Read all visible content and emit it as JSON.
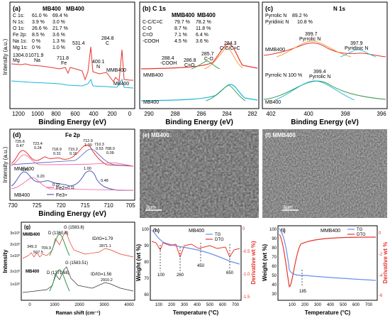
{
  "panel_a": {
    "letter": "(a)",
    "col1": "MB400",
    "col2": "MB400",
    "rows": [
      {
        "el": "C 1s:",
        "v1": "61.0 %",
        "v2": "69.4 %"
      },
      {
        "el": "N 1s:",
        "v1": "3.9 %",
        "v2": "3.0 %"
      },
      {
        "el": "O 1s:",
        "v1": "26.6 %",
        "v2": "21.7 %"
      },
      {
        "el": "Fe 2p:",
        "v1": "8.5 %",
        "v2": "3.6 %"
      },
      {
        "el": "Na 1s:",
        "v1": "0 %",
        "v2": "1.3 %"
      },
      {
        "el": "Mg 1s:",
        "v1": "0 %",
        "v2": "1.0 %"
      }
    ],
    "peaks": {
      "c": "284.8",
      "c_el": "C",
      "o": "531.4",
      "o_el": "O",
      "n": "400.1",
      "n_el": "N",
      "fe": "711.8",
      "fe_el": "Fe",
      "na": "1071.9",
      "na_el": "Na",
      "mg": "1304.0",
      "mg_el": "Mg"
    },
    "series": [
      "MMB400",
      "MB400"
    ],
    "xticks": [
      "1200",
      "1000",
      "800",
      "600",
      "400",
      "200",
      "0"
    ],
    "xlabel": "Binding Energy (eV)",
    "ylabel": "Intensity (a.u.)"
  },
  "panel_b": {
    "letter": "(b) C 1s",
    "col1": "MMB400",
    "col2": "MB400",
    "rows": [
      {
        "k": "C-C/C=C",
        "v1": "79.7 %",
        "v2": "78.2 %"
      },
      {
        "k": "C-O",
        "v1": "8.7 %",
        "v2": "11.8 %"
      },
      {
        "k": "C=O",
        "v1": "7.1 %",
        "v2": "6.4 %"
      },
      {
        "k": "-COOH",
        "v1": "4.5 %",
        "v2": "3.6 %"
      }
    ],
    "peaks": {
      "p1": "284.3",
      "p1_l": "C-C/C=C",
      "p2": "285.7",
      "p2_l": "C-O",
      "p3": "286.8",
      "p3_l": "C=O",
      "p4": "288.4",
      "p4_l": "-COOH"
    },
    "series": [
      "MMB400",
      "MB400"
    ],
    "xticks": [
      "290",
      "288",
      "286",
      "284",
      "282"
    ],
    "xlabel": "Binding Energy (eV)"
  },
  "panel_c": {
    "letter": "(c)",
    "title": "N 1s",
    "legend": [
      {
        "k": "Pyrrolic N",
        "v": "89.2 %"
      },
      {
        "k": "Pyridinic N",
        "v": "10.8 %"
      }
    ],
    "peaks": {
      "a": "399.7",
      "a_l": "Pyrrolic N",
      "b": "397.9",
      "b_l": "Pyridinic N",
      "c": "399.4",
      "c_l": "Pyrrolic N",
      "c_pct": "Pyrrolic N 100 %"
    },
    "series": [
      "MMB400",
      "MB400"
    ],
    "xticks": [
      "402",
      "400",
      "398",
      "396"
    ],
    "xlabel": "Binding Energy (eV)"
  },
  "panel_d": {
    "letter": "(d)",
    "title": "Fe 2p",
    "top_labels": [
      {
        "e": "725.6",
        "v": "0.47"
      },
      {
        "e": "723.4",
        "v": "0.24"
      },
      {
        "e": "718.9",
        "v": "0.31"
      },
      {
        "e": "715.2",
        "v": "0.16"
      },
      {
        "e": "712.0",
        "v": "1.00"
      },
      {
        "e": "710.3",
        "v": "0.53"
      },
      {
        "e": "708.0",
        "v": "0.09"
      }
    ],
    "bottom_labels": [
      "0.41",
      "0.20",
      "0.22",
      "0.11",
      "1.00",
      "0.48"
    ],
    "series": [
      "MMB400",
      "MB400"
    ],
    "legend": [
      "Fe2+",
      "Fe3+"
    ],
    "xticks": [
      "730",
      "725",
      "720",
      "715",
      "710",
      "705"
    ],
    "xlabel": "Binding Energy (eV)",
    "ylabel": "Intensity (a.u.)"
  },
  "panel_e": {
    "letter": "(e) MB400",
    "scale": "3μm"
  },
  "panel_f": {
    "letter": "(f) MMB400",
    "scale": "3μm"
  },
  "panel_g": {
    "letter": "(g)",
    "top": {
      "name": "MMB400",
      "g": "G (1583.8)",
      "d": "D (1360.8)",
      "ratio": "ID/IG=1.79",
      "p1": "349.3",
      "p2": "507.5",
      "p3": "709.3",
      "p4": "2871.1"
    },
    "bottom": {
      "name": "MB400",
      "g": "G (1583.51)",
      "d": "D (1371.68)",
      "ratio": "ID/IG=1.56",
      "p4": "2910.2"
    },
    "yticks": [
      "3x10³",
      "2x10³",
      "1x10³",
      "2x10³",
      "1x10³"
    ],
    "xticks": [
      "0",
      "1000",
      "2000",
      "3000",
      "4000"
    ],
    "xlabel": "Raman shift (cm⁻¹)",
    "ylabel": "Intensity"
  },
  "panel_h": {
    "letter": "(h)",
    "title": "MB400",
    "legend": [
      "TG",
      "DTG"
    ],
    "peaks": [
      "100",
      "260",
      "450",
      "650"
    ],
    "yleft": [
      "100",
      "90",
      "80",
      "70",
      "60"
    ],
    "yright": [
      "0",
      "-0.5",
      "-1.0",
      "-1.5"
    ],
    "xticks": [
      "100",
      "200",
      "300",
      "400",
      "500",
      "600",
      "700"
    ],
    "xlabel": "Temperature (°C)",
    "ylabel_left": "Weight (wt %)",
    "ylabel_right": "Derivative wt %)"
  },
  "panel_i": {
    "letter": "(i)",
    "title": "MMB400",
    "legend": [
      "TG",
      "DTG"
    ],
    "peaks": [
      "185"
    ],
    "yleft": [
      "100",
      "90",
      "80",
      "70",
      "60",
      "50",
      "40",
      "30"
    ],
    "yright": [
      "0",
      "-2",
      "-4",
      "-6"
    ],
    "xticks": [
      "100",
      "200",
      "300",
      "400",
      "500",
      "600",
      "700"
    ],
    "xlabel": "Temperature (°C)",
    "ylabel_left": "Weight (wt %)",
    "ylabel_right": "Derivative wt %"
  },
  "colors": {
    "red": "#e8352d",
    "cyan": "#18b6d6",
    "blue": "#6b8ef0",
    "green": "#2f9a4a",
    "pink": "#ef5aa0",
    "purple": "#4a5ab8"
  }
}
